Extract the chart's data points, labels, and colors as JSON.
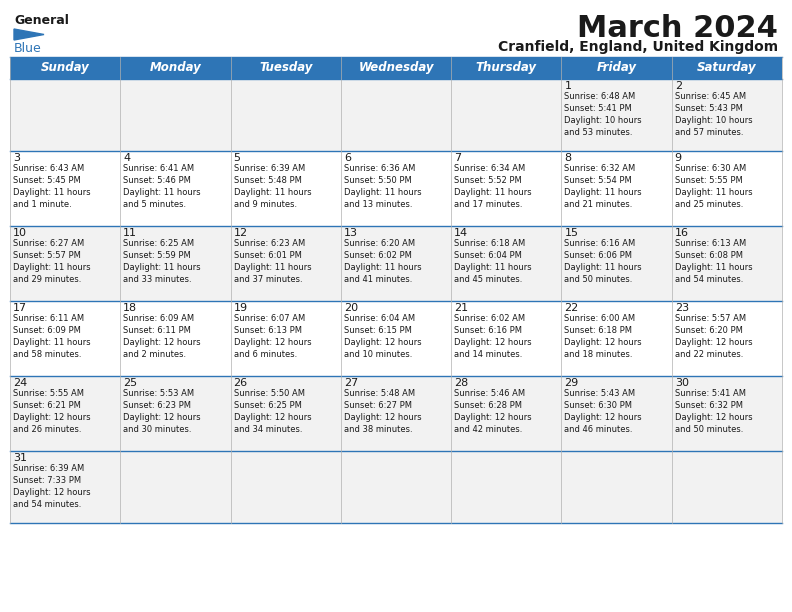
{
  "title": "March 2024",
  "subtitle": "Cranfield, England, United Kingdom",
  "header_color": "#2e75b6",
  "header_text_color": "#ffffff",
  "border_color": "#2e75b6",
  "days_of_week": [
    "Sunday",
    "Monday",
    "Tuesday",
    "Wednesday",
    "Thursday",
    "Friday",
    "Saturday"
  ],
  "calendar_data": [
    [
      "",
      "",
      "",
      "",
      "",
      "1\nSunrise: 6:48 AM\nSunset: 5:41 PM\nDaylight: 10 hours\nand 53 minutes.",
      "2\nSunrise: 6:45 AM\nSunset: 5:43 PM\nDaylight: 10 hours\nand 57 minutes."
    ],
    [
      "3\nSunrise: 6:43 AM\nSunset: 5:45 PM\nDaylight: 11 hours\nand 1 minute.",
      "4\nSunrise: 6:41 AM\nSunset: 5:46 PM\nDaylight: 11 hours\nand 5 minutes.",
      "5\nSunrise: 6:39 AM\nSunset: 5:48 PM\nDaylight: 11 hours\nand 9 minutes.",
      "6\nSunrise: 6:36 AM\nSunset: 5:50 PM\nDaylight: 11 hours\nand 13 minutes.",
      "7\nSunrise: 6:34 AM\nSunset: 5:52 PM\nDaylight: 11 hours\nand 17 minutes.",
      "8\nSunrise: 6:32 AM\nSunset: 5:54 PM\nDaylight: 11 hours\nand 21 minutes.",
      "9\nSunrise: 6:30 AM\nSunset: 5:55 PM\nDaylight: 11 hours\nand 25 minutes."
    ],
    [
      "10\nSunrise: 6:27 AM\nSunset: 5:57 PM\nDaylight: 11 hours\nand 29 minutes.",
      "11\nSunrise: 6:25 AM\nSunset: 5:59 PM\nDaylight: 11 hours\nand 33 minutes.",
      "12\nSunrise: 6:23 AM\nSunset: 6:01 PM\nDaylight: 11 hours\nand 37 minutes.",
      "13\nSunrise: 6:20 AM\nSunset: 6:02 PM\nDaylight: 11 hours\nand 41 minutes.",
      "14\nSunrise: 6:18 AM\nSunset: 6:04 PM\nDaylight: 11 hours\nand 45 minutes.",
      "15\nSunrise: 6:16 AM\nSunset: 6:06 PM\nDaylight: 11 hours\nand 50 minutes.",
      "16\nSunrise: 6:13 AM\nSunset: 6:08 PM\nDaylight: 11 hours\nand 54 minutes."
    ],
    [
      "17\nSunrise: 6:11 AM\nSunset: 6:09 PM\nDaylight: 11 hours\nand 58 minutes.",
      "18\nSunrise: 6:09 AM\nSunset: 6:11 PM\nDaylight: 12 hours\nand 2 minutes.",
      "19\nSunrise: 6:07 AM\nSunset: 6:13 PM\nDaylight: 12 hours\nand 6 minutes.",
      "20\nSunrise: 6:04 AM\nSunset: 6:15 PM\nDaylight: 12 hours\nand 10 minutes.",
      "21\nSunrise: 6:02 AM\nSunset: 6:16 PM\nDaylight: 12 hours\nand 14 minutes.",
      "22\nSunrise: 6:00 AM\nSunset: 6:18 PM\nDaylight: 12 hours\nand 18 minutes.",
      "23\nSunrise: 5:57 AM\nSunset: 6:20 PM\nDaylight: 12 hours\nand 22 minutes."
    ],
    [
      "24\nSunrise: 5:55 AM\nSunset: 6:21 PM\nDaylight: 12 hours\nand 26 minutes.",
      "25\nSunrise: 5:53 AM\nSunset: 6:23 PM\nDaylight: 12 hours\nand 30 minutes.",
      "26\nSunrise: 5:50 AM\nSunset: 6:25 PM\nDaylight: 12 hours\nand 34 minutes.",
      "27\nSunrise: 5:48 AM\nSunset: 6:27 PM\nDaylight: 12 hours\nand 38 minutes.",
      "28\nSunrise: 5:46 AM\nSunset: 6:28 PM\nDaylight: 12 hours\nand 42 minutes.",
      "29\nSunrise: 5:43 AM\nSunset: 6:30 PM\nDaylight: 12 hours\nand 46 minutes.",
      "30\nSunrise: 5:41 AM\nSunset: 6:32 PM\nDaylight: 12 hours\nand 50 minutes."
    ],
    [
      "31\nSunrise: 6:39 AM\nSunset: 7:33 PM\nDaylight: 12 hours\nand 54 minutes.",
      "",
      "",
      "",
      "",
      "",
      ""
    ]
  ],
  "row_colors": [
    "#f2f2f2",
    "#ffffff",
    "#f2f2f2",
    "#ffffff",
    "#f2f2f2",
    "#f2f2f2"
  ],
  "fig_width": 7.92,
  "fig_height": 6.12,
  "background_color": "#ffffff",
  "logo_general_color": "#1a1a1a",
  "logo_blue_color": "#2e75b6",
  "title_fontsize": 22,
  "subtitle_fontsize": 10,
  "header_fontsize": 8.5,
  "day_num_fontsize": 8,
  "cell_text_fontsize": 6.0
}
